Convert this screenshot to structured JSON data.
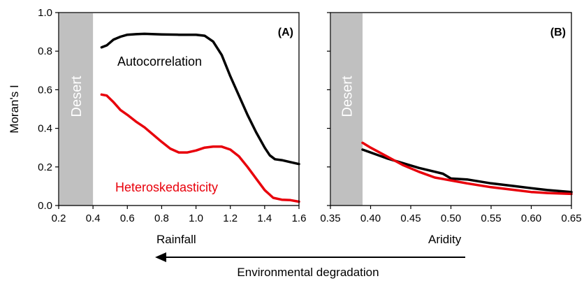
{
  "chart_data": [
    {
      "type": "line",
      "panel_label": "(A)",
      "xlabel": "Rainfall",
      "ylabel": "Moran's I",
      "xlim": [
        0.2,
        1.6
      ],
      "ylim": [
        0.0,
        1.0
      ],
      "xticks": [
        "0.2",
        "0.4",
        "0.6",
        "0.8",
        "1.0",
        "1.2",
        "1.4",
        "1.6"
      ],
      "yticks": [
        "0.0",
        "0.2",
        "0.4",
        "0.6",
        "0.8",
        "1.0"
      ],
      "shaded_region": {
        "x": [
          0.2,
          0.4
        ],
        "label": "Desert",
        "color": "#c0c0c0"
      },
      "series": [
        {
          "name": "Autocorrelation",
          "color": "#000000",
          "x": [
            0.45,
            0.48,
            0.52,
            0.56,
            0.6,
            0.65,
            0.7,
            0.8,
            0.9,
            1.0,
            1.05,
            1.1,
            1.15,
            1.2,
            1.25,
            1.3,
            1.35,
            1.4,
            1.43,
            1.46,
            1.5,
            1.55,
            1.6
          ],
          "y": [
            0.82,
            0.83,
            0.86,
            0.875,
            0.885,
            0.888,
            0.89,
            0.887,
            0.885,
            0.885,
            0.88,
            0.85,
            0.78,
            0.67,
            0.57,
            0.47,
            0.38,
            0.3,
            0.26,
            0.24,
            0.235,
            0.225,
            0.215
          ]
        },
        {
          "name": "Heteroskedasticity",
          "color": "#e8000b",
          "x": [
            0.45,
            0.48,
            0.52,
            0.56,
            0.6,
            0.65,
            0.7,
            0.8,
            0.85,
            0.9,
            0.95,
            1.0,
            1.05,
            1.1,
            1.15,
            1.2,
            1.25,
            1.3,
            1.35,
            1.4,
            1.45,
            1.5,
            1.55,
            1.6
          ],
          "y": [
            0.575,
            0.57,
            0.535,
            0.495,
            0.47,
            0.435,
            0.405,
            0.33,
            0.295,
            0.275,
            0.275,
            0.285,
            0.3,
            0.305,
            0.305,
            0.29,
            0.255,
            0.2,
            0.14,
            0.08,
            0.04,
            0.03,
            0.028,
            0.02
          ]
        }
      ]
    },
    {
      "type": "line",
      "panel_label": "(B)",
      "xlabel": "Aridity",
      "ylabel": "",
      "xlim": [
        0.35,
        0.65
      ],
      "ylim": [
        0.0,
        1.0
      ],
      "xticks": [
        "0.35",
        "0.40",
        "0.45",
        "0.50",
        "0.55",
        "0.60",
        "0.65"
      ],
      "shaded_region": {
        "x": [
          0.35,
          0.39
        ],
        "label": "Desert",
        "color": "#c0c0c0"
      },
      "series": [
        {
          "name": "Autocorrelation",
          "color": "#000000",
          "x": [
            0.39,
            0.4,
            0.42,
            0.44,
            0.46,
            0.48,
            0.49,
            0.5,
            0.52,
            0.55,
            0.58,
            0.6,
            0.62,
            0.65
          ],
          "y": [
            0.29,
            0.275,
            0.245,
            0.22,
            0.195,
            0.175,
            0.165,
            0.14,
            0.135,
            0.115,
            0.1,
            0.09,
            0.08,
            0.07
          ]
        },
        {
          "name": "Heteroskedasticity",
          "color": "#e8000b",
          "x": [
            0.39,
            0.4,
            0.42,
            0.44,
            0.46,
            0.48,
            0.5,
            0.52,
            0.55,
            0.58,
            0.6,
            0.62,
            0.65
          ],
          "y": [
            0.325,
            0.3,
            0.255,
            0.21,
            0.175,
            0.145,
            0.13,
            0.115,
            0.095,
            0.08,
            0.07,
            0.065,
            0.06
          ]
        }
      ]
    }
  ],
  "annotations": {
    "arrow_label": "Environmental degradation"
  }
}
